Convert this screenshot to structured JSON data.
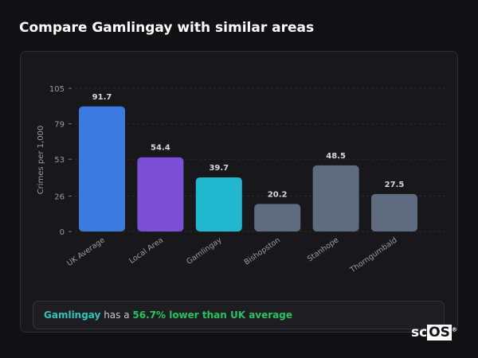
{
  "header": {
    "title": "Compare Gamlingay with similar areas"
  },
  "chart_data": {
    "type": "bar",
    "categories": [
      "UK Average",
      "Local Area",
      "Gamlingay",
      "Bishopston",
      "Stanhope",
      "Thorngumbald"
    ],
    "values": [
      91.7,
      54.4,
      39.7,
      20.2,
      48.5,
      27.5
    ],
    "colors": [
      "#3b7bdf",
      "#7b4fd6",
      "#22b8d0",
      "#5f6b7e",
      "#5f6b7e",
      "#5f6b7e"
    ],
    "ylabel": "Crimes per 1,000",
    "yticks": [
      0,
      26,
      53,
      79,
      105
    ],
    "ylim": [
      0,
      105
    ],
    "grid": true
  },
  "footer": {
    "area": "Gamlingay",
    "middle": " has a ",
    "highlight": "56.7% lower than UK average"
  },
  "logo": {
    "text": "scOS"
  }
}
